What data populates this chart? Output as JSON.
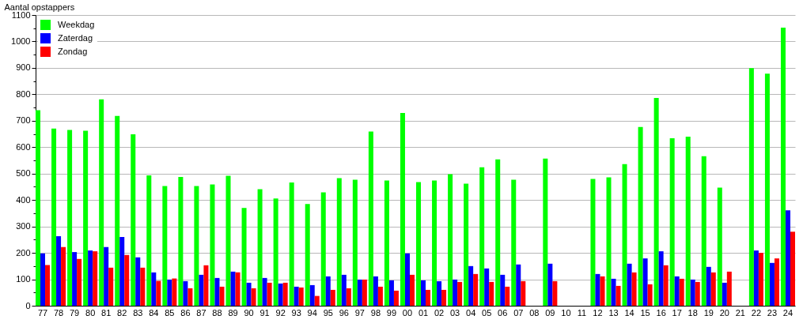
{
  "chart_data": {
    "type": "bar",
    "ylabel": "Aantal opstappers",
    "categories": [
      "77",
      "78",
      "79",
      "80",
      "81",
      "82",
      "83",
      "84",
      "85",
      "86",
      "87",
      "88",
      "89",
      "90",
      "91",
      "92",
      "93",
      "94",
      "95",
      "96",
      "97",
      "98",
      "99",
      "00",
      "01",
      "02",
      "03",
      "04",
      "05",
      "06",
      "07",
      "08",
      "09",
      "10",
      "11",
      "12",
      "13",
      "14",
      "15",
      "16",
      "17",
      "18",
      "19",
      "20",
      "21",
      "22",
      "23",
      "24"
    ],
    "series": [
      {
        "name": "Weekdag",
        "color": "#00ff00",
        "values": [
          740,
          670,
          665,
          662,
          781,
          718,
          649,
          493,
          453,
          487,
          453,
          459,
          492,
          370,
          441,
          406,
          466,
          385,
          429,
          483,
          477,
          659,
          474,
          729,
          468,
          474,
          498,
          462,
          524,
          554,
          477,
          null,
          557,
          null,
          null,
          480,
          486,
          536,
          676,
          786,
          634,
          640,
          566,
          447,
          null,
          899,
          878,
          1052
        ]
      },
      {
        "name": "Zaterdag",
        "color": "#0000ff",
        "values": [
          198,
          263,
          203,
          209,
          222,
          260,
          183,
          126,
          99,
          93,
          117,
          105,
          129,
          87,
          105,
          84,
          72,
          78,
          111,
          117,
          99,
          111,
          96,
          198,
          96,
          93,
          99,
          150,
          141,
          117,
          156,
          null,
          159,
          null,
          null,
          120,
          102,
          159,
          179,
          206,
          111,
          99,
          147,
          87,
          null,
          209,
          162,
          361
        ]
      },
      {
        "name": "Zondag",
        "color": "#ff0000",
        "values": [
          154,
          222,
          177,
          206,
          144,
          192,
          144,
          94,
          103,
          66,
          153,
          72,
          126,
          66,
          87,
          87,
          69,
          37,
          60,
          66,
          99,
          72,
          57,
          117,
          60,
          60,
          90,
          120,
          90,
          72,
          93,
          null,
          93,
          null,
          null,
          111,
          75,
          126,
          81,
          153,
          102,
          90,
          126,
          129,
          null,
          200,
          179,
          280
        ]
      }
    ],
    "ylim": [
      0,
      1100
    ],
    "yticks": [
      0,
      {
        "value": 50,
        "label": null
      },
      100,
      {
        "value": 150,
        "label": null
      },
      200,
      {
        "value": 250,
        "label": null
      },
      300,
      {
        "value": 350,
        "label": null
      },
      400,
      {
        "value": 450,
        "label": null
      },
      500,
      {
        "value": 550,
        "label": null
      },
      600,
      {
        "value": 650,
        "label": null
      },
      700,
      {
        "value": 750,
        "label": null
      },
      800,
      {
        "value": 850,
        "label": null
      },
      900,
      {
        "value": 950,
        "label": null
      },
      1000,
      {
        "value": 1050,
        "label": null
      },
      1100
    ],
    "grid": "y",
    "legend": "top left"
  }
}
